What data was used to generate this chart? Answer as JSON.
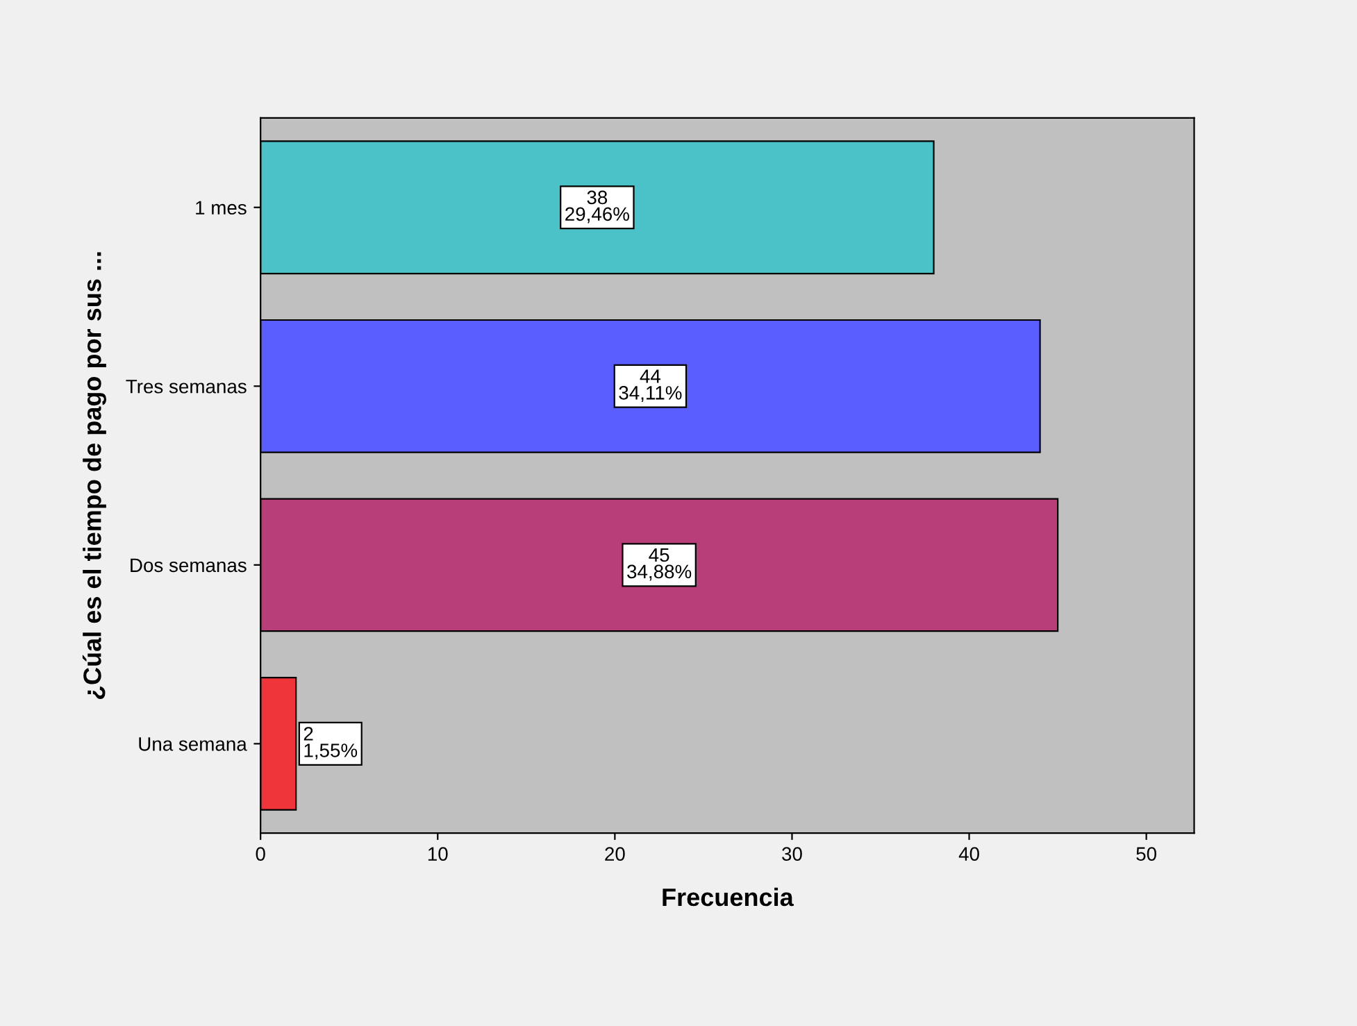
{
  "chart_data": {
    "type": "bar",
    "orientation": "horizontal",
    "ylabel": "¿Cúal es el tiempo de pago por sus ...",
    "xlabel": "Frecuencia",
    "categories": [
      "1 mes",
      "Tres semanas",
      "Dos semanas",
      "Una semana"
    ],
    "values": [
      38,
      44,
      45,
      2
    ],
    "colors": [
      "#4ac2c8",
      "#5b5efe",
      "#b83e7a",
      "#f0353a"
    ],
    "value_labels": [
      "38\n29,46%",
      "44\n34,11%",
      "45\n34,88%",
      "2\n1,55%"
    ],
    "xlim": [
      0,
      52.7
    ],
    "xticks": [
      0,
      10,
      20,
      30,
      40,
      50
    ],
    "grid": false
  }
}
